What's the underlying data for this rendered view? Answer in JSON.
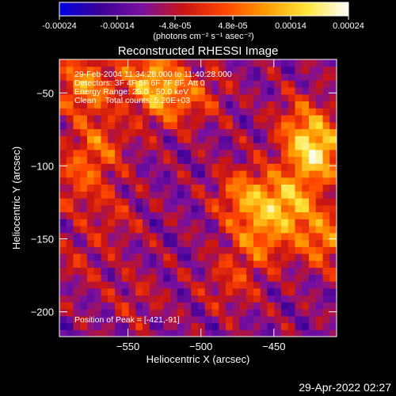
{
  "chart_data": {
    "type": "heatmap",
    "title": "Reconstructed RHESSI Image",
    "xlabel": "Heliocentric X (arcsec)",
    "ylabel": "Heliocentric Y (arcsec)",
    "xlim": [
      -597,
      -407
    ],
    "ylim": [
      -217,
      -27
    ],
    "x_ticks": [
      -550,
      -500,
      -450
    ],
    "y_ticks": [
      -50,
      -100,
      -150,
      -200
    ],
    "colorbar": {
      "vmin": -0.00024,
      "vmax": 0.00024,
      "tick_labels": [
        "-0.00024",
        "-0.00014",
        "-4.8e-05",
        "4.8e-05",
        "0.00014",
        "0.00024"
      ],
      "label": "(photons cm⁻² s⁻¹ asec⁻²)",
      "colors": [
        "#0000e0",
        "#3c0096",
        "#7a10a0",
        "#c81414",
        "#ff4600",
        "#ff9a00",
        "#ffe63c",
        "#ffffff"
      ]
    },
    "annotations": {
      "time": "29-Feb-2004 11:34:28.000 to 11:40:28.000",
      "detectors": "Detectors: 3F 4F 5F 6F 7F 8F, Att 0",
      "energy": "Energy Range: 25.0 - 50.0 keV",
      "method": "Clean    Total counts: 5.20E+03",
      "peak": "Position of Peak = [-421,-91]"
    },
    "peak": {
      "x": -421,
      "y": -91
    },
    "intensity_hotspots": [
      {
        "x": -580,
        "y": -45,
        "v": 0.00018
      },
      {
        "x": -535,
        "y": -38,
        "v": 0.00016
      },
      {
        "x": -525,
        "y": -55,
        "v": 0.00012
      },
      {
        "x": -500,
        "y": -50,
        "v": 8e-05
      },
      {
        "x": -570,
        "y": -85,
        "v": 0.00012
      },
      {
        "x": -585,
        "y": -110,
        "v": 0.0001
      },
      {
        "x": -560,
        "y": -135,
        "v": 6e-05
      },
      {
        "x": -585,
        "y": -165,
        "v": 5e-05
      },
      {
        "x": -421,
        "y": -91,
        "v": 0.00024
      },
      {
        "x": -440,
        "y": -125,
        "v": 0.0002
      },
      {
        "x": -470,
        "y": -120,
        "v": 0.00016
      },
      {
        "x": -460,
        "y": -150,
        "v": 0.00014
      },
      {
        "x": -415,
        "y": -150,
        "v": 0.00016
      },
      {
        "x": -430,
        "y": -70,
        "v": 0.00012
      },
      {
        "x": -480,
        "y": -180,
        "v": 8e-05
      },
      {
        "x": -545,
        "y": -190,
        "v": 5e-05
      }
    ]
  },
  "footer": {
    "timestamp": "29-Apr-2022 02:27"
  }
}
